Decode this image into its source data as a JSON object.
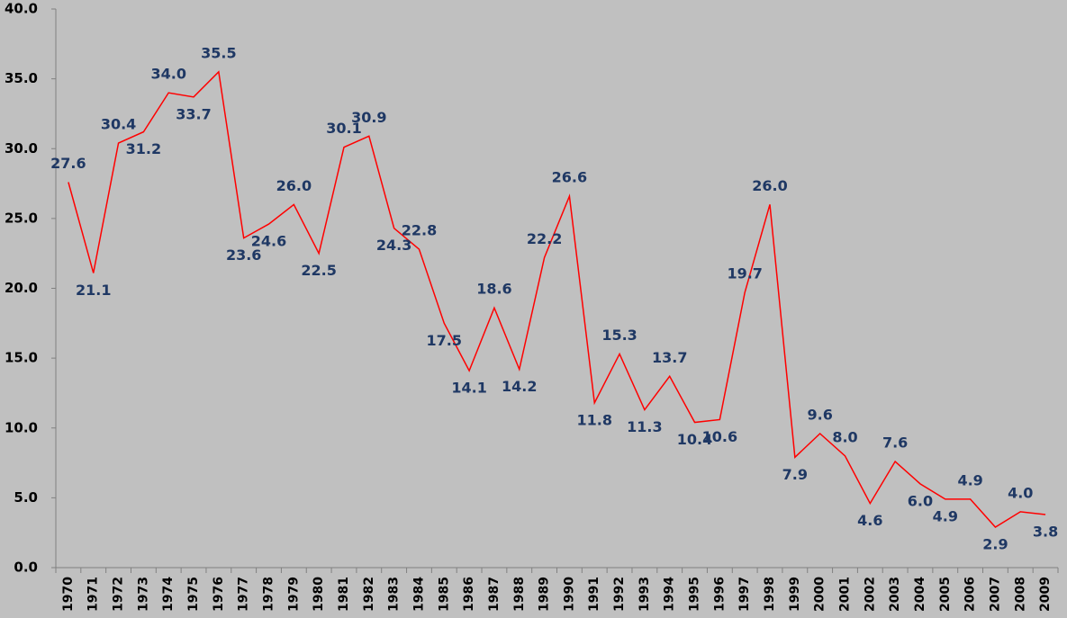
{
  "chart_data": {
    "type": "line",
    "categories": [
      "1970",
      "1971",
      "1972",
      "1973",
      "1974",
      "1975",
      "1976",
      "1977",
      "1978",
      "1979",
      "1980",
      "1981",
      "1982",
      "1983",
      "1984",
      "1985",
      "1986",
      "1987",
      "1988",
      "1989",
      "1990",
      "1991",
      "1992",
      "1993",
      "1994",
      "1995",
      "1996",
      "1997",
      "1998",
      "1999",
      "2000",
      "2001",
      "2002",
      "2003",
      "2004",
      "2005",
      "2006",
      "2007",
      "2008",
      "2009"
    ],
    "values": [
      27.6,
      21.1,
      30.4,
      31.2,
      34.0,
      33.7,
      35.5,
      23.6,
      24.6,
      26.0,
      22.5,
      30.1,
      30.9,
      24.3,
      22.8,
      17.5,
      14.1,
      18.6,
      14.2,
      22.2,
      26.6,
      11.8,
      15.3,
      11.3,
      13.7,
      10.4,
      10.6,
      19.7,
      26.0,
      7.9,
      9.6,
      8.0,
      4.6,
      7.6,
      6.0,
      4.9,
      4.9,
      2.9,
      4.0,
      3.8
    ],
    "value_labels": [
      "27.6",
      "21.1",
      "30.4",
      "31.2",
      "34.0",
      "33.7",
      "35.5",
      "23.6",
      "24.6",
      "26.0",
      "22.5",
      "30.1",
      "30.9",
      "24.3",
      "22.8",
      "17.5",
      "14.1",
      "18.6",
      "14.2",
      "22.2",
      "26.6",
      "11.8",
      "15.3",
      "11.3",
      "13.7",
      "10.4",
      "10.6",
      "19.7",
      "26.0",
      "7.9",
      "9.6",
      "8.0",
      "4.6",
      "7.6",
      "6.0",
      "4.9",
      "4.9",
      "2.9",
      "4.0",
      "3.8"
    ],
    "color": "#ff0000",
    "ylim": [
      0,
      40
    ],
    "yticks": [
      {
        "value": 0,
        "label": "0.0"
      },
      {
        "value": 5,
        "label": "5.0"
      },
      {
        "value": 10,
        "label": "10.0"
      },
      {
        "value": 15,
        "label": "15.0"
      },
      {
        "value": 20,
        "label": "20.0"
      },
      {
        "value": 25,
        "label": "25.0"
      },
      {
        "value": 30,
        "label": "30.0"
      },
      {
        "value": 35,
        "label": "35.0"
      },
      {
        "value": 40,
        "label": "40.0"
      }
    ],
    "grid": false
  }
}
